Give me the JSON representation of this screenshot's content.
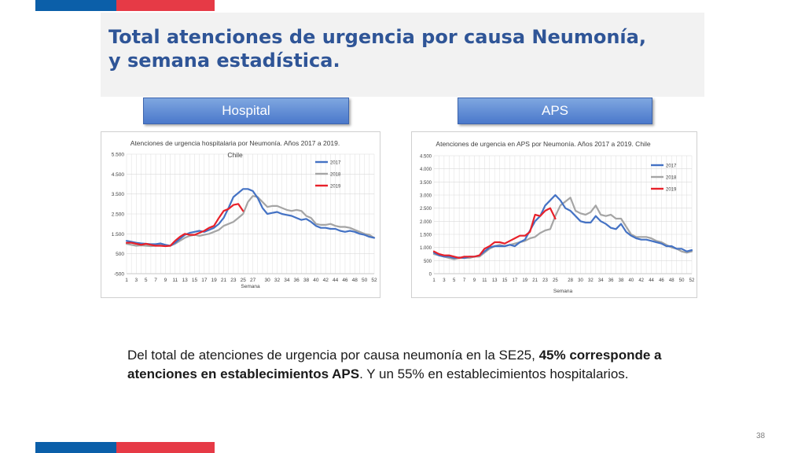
{
  "slide": {
    "title_line1": "Total atenciones de urgencia por causa Neumonía,",
    "title_line2": "y semana estadística.",
    "hospital_label": "Hospital",
    "aps_label": "APS",
    "summary": {
      "part1": "Del total de atenciones de urgencia por causa neumonía en la SE25, ",
      "bold1": "45% corresponde a atenciones en establecimientos APS",
      "part2": ". Y un 55% en establecimientos hospitalarios."
    },
    "page_number": "38"
  },
  "colors": {
    "title": "#2f5597",
    "series_2017": "#4472c4",
    "series_2018": "#a5a5a5",
    "series_2019": "#e8212a"
  },
  "chart_data": [
    {
      "type": "line",
      "title_line1": "Atenciones de urgencia hospitalaria por Neumonía. Años 2017 a 2019.",
      "title_line2": "Chile",
      "xlabel": "Semana",
      "ylabel": "",
      "ylim": [
        -500,
        5500
      ],
      "yticks": [
        -500,
        500,
        1500,
        2500,
        3500,
        4500,
        5500
      ],
      "ytick_labels": [
        "-500",
        "500",
        "1.500",
        "2.500",
        "3.500",
        "4.500",
        "5.500"
      ],
      "xlim": [
        1,
        52
      ],
      "xticks": [
        1,
        3,
        5,
        7,
        9,
        11,
        13,
        15,
        17,
        19,
        21,
        23,
        25,
        27,
        30,
        32,
        34,
        36,
        38,
        40,
        42,
        44,
        46,
        48,
        50,
        52
      ],
      "xtick_labels": [
        "1",
        "3",
        "5",
        "7",
        "9",
        "11",
        "13",
        "15",
        "17",
        "19",
        "21",
        "23",
        "25",
        "27",
        "30",
        "32",
        "34",
        "36",
        "38",
        "40",
        "42",
        "44",
        "46",
        "48",
        "50",
        "52"
      ],
      "grid": true,
      "legend": "right",
      "series": [
        {
          "name": "2017",
          "x": [
            1,
            2,
            3,
            4,
            5,
            6,
            7,
            8,
            9,
            10,
            11,
            12,
            13,
            14,
            15,
            16,
            17,
            18,
            19,
            20,
            21,
            22,
            23,
            24,
            25,
            26,
            27,
            28,
            29,
            30,
            31,
            32,
            33,
            34,
            35,
            36,
            37,
            38,
            39,
            40,
            41,
            42,
            43,
            44,
            45,
            46,
            47,
            48,
            49,
            50,
            51,
            52
          ],
          "y": [
            1150,
            1100,
            1050,
            1020,
            1000,
            980,
            980,
            1020,
            950,
            900,
            1050,
            1250,
            1450,
            1550,
            1600,
            1650,
            1600,
            1700,
            1800,
            2000,
            2300,
            2800,
            3350,
            3550,
            3750,
            3750,
            3650,
            3300,
            2800,
            2500,
            2550,
            2600,
            2500,
            2450,
            2400,
            2300,
            2200,
            2250,
            2100,
            1900,
            1800,
            1800,
            1750,
            1750,
            1650,
            1600,
            1650,
            1600,
            1500,
            1450,
            1350,
            1300
          ]
        },
        {
          "name": "2018",
          "x": [
            1,
            2,
            3,
            4,
            5,
            6,
            7,
            8,
            9,
            10,
            11,
            12,
            13,
            14,
            15,
            16,
            17,
            18,
            19,
            20,
            21,
            22,
            23,
            24,
            25,
            26,
            27,
            28,
            29,
            30,
            31,
            32,
            33,
            34,
            35,
            36,
            37,
            38,
            39,
            40,
            41,
            42,
            43,
            44,
            45,
            46,
            47,
            48,
            49,
            50,
            51,
            52
          ],
          "y": [
            1000,
            950,
            900,
            920,
            900,
            880,
            900,
            950,
            900,
            900,
            1000,
            1150,
            1300,
            1400,
            1450,
            1400,
            1450,
            1500,
            1600,
            1700,
            1900,
            2000,
            2100,
            2300,
            2500,
            3100,
            3400,
            3350,
            3100,
            2850,
            2900,
            2900,
            2800,
            2700,
            2650,
            2700,
            2650,
            2400,
            2300,
            2000,
            1950,
            1950,
            2000,
            1900,
            1850,
            1850,
            1800,
            1700,
            1600,
            1500,
            1450,
            1300
          ]
        },
        {
          "name": "2019",
          "x": [
            1,
            2,
            3,
            4,
            5,
            6,
            7,
            8,
            9,
            10,
            11,
            12,
            13,
            14,
            15,
            16,
            17,
            18,
            19,
            20,
            21,
            22,
            23,
            24,
            25
          ],
          "y": [
            1050,
            1050,
            1000,
            950,
            1000,
            950,
            900,
            900,
            880,
            900,
            1150,
            1350,
            1500,
            1450,
            1450,
            1550,
            1650,
            1800,
            1900,
            2300,
            2650,
            2750,
            2950,
            3000,
            2650
          ]
        }
      ]
    },
    {
      "type": "line",
      "title_line1": "Atenciones de urgencia en APS por Neumonía. Años 2017 a 2019. Chile",
      "title_line2": "",
      "xlabel": "Semana",
      "ylabel": "",
      "ylim": [
        0,
        4500
      ],
      "yticks": [
        0,
        500,
        1000,
        1500,
        2000,
        2500,
        3000,
        3500,
        4000,
        4500
      ],
      "ytick_labels": [
        "0",
        "500",
        "1.000",
        "1.500",
        "2.000",
        "2.500",
        "3.000",
        "3.500",
        "4.000",
        "4.500"
      ],
      "xlim": [
        1,
        52
      ],
      "xticks": [
        1,
        3,
        5,
        7,
        9,
        11,
        13,
        15,
        17,
        19,
        21,
        23,
        25,
        28,
        30,
        32,
        34,
        36,
        38,
        40,
        42,
        44,
        46,
        48,
        50,
        52
      ],
      "xtick_labels": [
        "1",
        "3",
        "5",
        "7",
        "9",
        "11",
        "13",
        "15",
        "17",
        "19",
        "21",
        "23",
        "25",
        "28",
        "30",
        "32",
        "34",
        "36",
        "38",
        "40",
        "42",
        "44",
        "46",
        "48",
        "50",
        "52"
      ],
      "grid": true,
      "legend": "right",
      "series": [
        {
          "name": "2017",
          "x": [
            1,
            2,
            3,
            4,
            5,
            6,
            7,
            8,
            9,
            10,
            11,
            12,
            13,
            14,
            15,
            16,
            17,
            18,
            19,
            20,
            21,
            22,
            23,
            24,
            25,
            26,
            27,
            28,
            29,
            30,
            31,
            32,
            33,
            34,
            35,
            36,
            37,
            38,
            39,
            40,
            41,
            42,
            43,
            44,
            45,
            46,
            47,
            48,
            49,
            50,
            51,
            52
          ],
          "y": [
            800,
            700,
            650,
            650,
            600,
            620,
            600,
            650,
            650,
            700,
            850,
            1000,
            1050,
            1050,
            1050,
            1100,
            1050,
            1200,
            1300,
            1650,
            2000,
            2200,
            2600,
            2800,
            3000,
            2800,
            2500,
            2400,
            2200,
            2000,
            1950,
            1950,
            2200,
            2000,
            1900,
            1750,
            1700,
            1900,
            1600,
            1450,
            1350,
            1300,
            1300,
            1250,
            1200,
            1150,
            1050,
            1050,
            950,
            950,
            850,
            900
          ]
        },
        {
          "name": "2018",
          "x": [
            1,
            2,
            3,
            4,
            5,
            6,
            7,
            8,
            9,
            10,
            11,
            12,
            13,
            14,
            15,
            16,
            17,
            18,
            19,
            20,
            21,
            22,
            23,
            24,
            25,
            26,
            27,
            28,
            29,
            30,
            31,
            32,
            33,
            34,
            35,
            36,
            37,
            38,
            39,
            40,
            41,
            42,
            43,
            44,
            45,
            46,
            47,
            48,
            49,
            50,
            51,
            52
          ],
          "y": [
            750,
            700,
            650,
            600,
            550,
            600,
            600,
            600,
            650,
            650,
            800,
            950,
            1050,
            1100,
            1050,
            1100,
            1150,
            1200,
            1250,
            1350,
            1400,
            1550,
            1650,
            1700,
            2200,
            2600,
            2750,
            2900,
            2400,
            2300,
            2250,
            2350,
            2600,
            2250,
            2200,
            2250,
            2100,
            2100,
            1800,
            1500,
            1400,
            1400,
            1400,
            1350,
            1250,
            1200,
            1100,
            1000,
            950,
            850,
            800,
            850
          ]
        },
        {
          "name": "2019",
          "x": [
            1,
            2,
            3,
            4,
            5,
            6,
            7,
            8,
            9,
            10,
            11,
            12,
            13,
            14,
            15,
            16,
            17,
            18,
            19,
            20,
            21,
            22,
            23,
            24,
            25
          ],
          "y": [
            850,
            750,
            700,
            700,
            650,
            600,
            650,
            650,
            650,
            700,
            950,
            1050,
            1200,
            1200,
            1150,
            1250,
            1350,
            1450,
            1450,
            1600,
            2250,
            2200,
            2400,
            2500,
            2100
          ]
        }
      ]
    }
  ]
}
